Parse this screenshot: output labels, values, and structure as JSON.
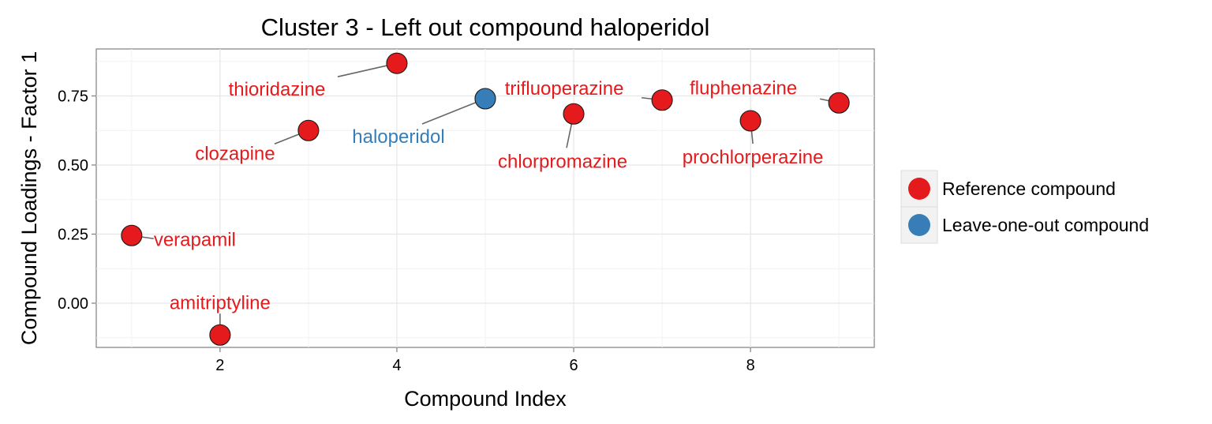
{
  "chart_data": {
    "type": "scatter",
    "title": "Cluster 3 - Left out compound haloperidol",
    "xlabel": "Compound Index",
    "ylabel": "Compound Loadings - Factor 1",
    "xlim": [
      0.6,
      9.4
    ],
    "ylim": [
      -0.16,
      0.92
    ],
    "xticks": [
      2,
      4,
      6,
      8
    ],
    "yticks": [
      0.0,
      0.25,
      0.5,
      0.75
    ],
    "ytick_labels": [
      "0.00",
      "0.25",
      "0.50",
      "0.75"
    ],
    "grid": true,
    "legend_position": "right",
    "colors": {
      "reference": "#e41a1c",
      "leave_one_out": "#377eb8"
    },
    "legend": [
      {
        "key": "reference",
        "label": "Reference compound"
      },
      {
        "key": "leave_one_out",
        "label": "Leave-one-out compound"
      }
    ],
    "points": [
      {
        "x": 1,
        "y": 0.245,
        "name": "verapamil",
        "group": "reference"
      },
      {
        "x": 2,
        "y": -0.115,
        "name": "amitriptyline",
        "group": "reference"
      },
      {
        "x": 3,
        "y": 0.625,
        "name": "clozapine",
        "group": "reference"
      },
      {
        "x": 4,
        "y": 0.868,
        "name": "thioridazine",
        "group": "reference"
      },
      {
        "x": 5,
        "y": 0.74,
        "name": "haloperidol",
        "group": "leave_one_out"
      },
      {
        "x": 6,
        "y": 0.685,
        "name": "chlorpromazine",
        "group": "reference"
      },
      {
        "x": 7,
        "y": 0.735,
        "name": "trifluoperazine",
        "group": "reference"
      },
      {
        "x": 8,
        "y": 0.66,
        "name": "prochlorperazine",
        "group": "reference"
      },
      {
        "x": 9,
        "y": 0.725,
        "name": "fluphenazine",
        "group": "reference"
      }
    ]
  }
}
